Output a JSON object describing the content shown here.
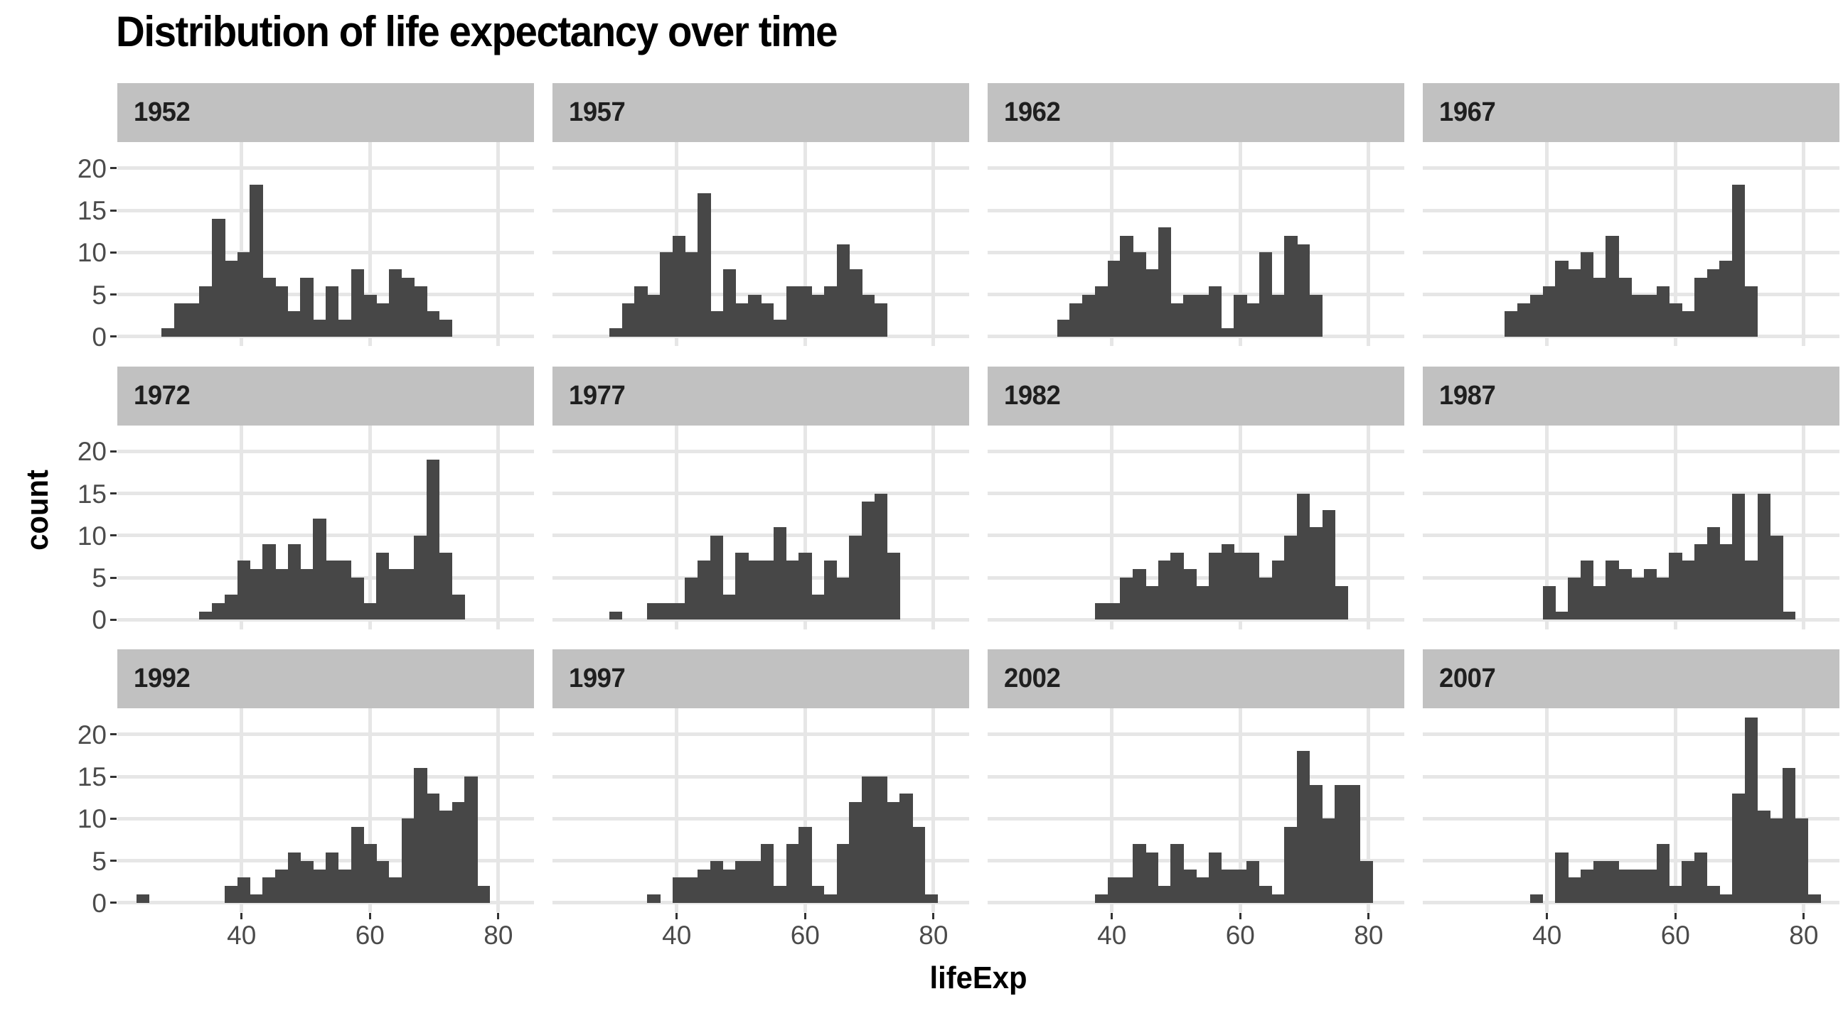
{
  "title": "Distribution of life expectancy over time",
  "x_axis": {
    "label": "lifeExp",
    "tick_labels": [
      "40",
      "60",
      "80"
    ],
    "tick_values": [
      40,
      60,
      80
    ]
  },
  "y_axis": {
    "label": "count",
    "tick_labels": [
      "0",
      "5",
      "10",
      "15",
      "20"
    ],
    "tick_values": [
      0,
      5,
      10,
      15,
      20
    ]
  },
  "colors": {
    "bar": "#474747",
    "strip_background": "#c1c1c1",
    "strip_text": "#1f1f1f",
    "gridline": "#e6e6e6",
    "axis_tick_text": "#4b4b4b",
    "tick_mark": "#333333",
    "title_text": "#000000",
    "panel_background": "#ffffff"
  },
  "chart_data": {
    "type": "bar",
    "subtype": "faceted-histogram",
    "title": "Distribution of life expectancy over time",
    "xlabel": "lifeExp",
    "ylabel": "count",
    "legend": "none",
    "grid": "major-only",
    "facet_layout": {
      "rows": 3,
      "cols": 4
    },
    "x_domain": [
      20.65,
      85.55
    ],
    "y_domain": [
      -1.1,
      23.1
    ],
    "x_ticks": [
      40,
      60,
      80
    ],
    "y_ticks": [
      0,
      5,
      10,
      15,
      20
    ],
    "bin_start": 23.6,
    "bin_width": 1.9667,
    "n_bins": 30,
    "total_per_facet": 142,
    "facets": [
      {
        "year": "1952",
        "counts": [
          0,
          0,
          1,
          4,
          4,
          6,
          14,
          9,
          10,
          18,
          7,
          6,
          3,
          7,
          2,
          6,
          2,
          8,
          5,
          4,
          8,
          7,
          6,
          3,
          2,
          0,
          0,
          0,
          0,
          0
        ]
      },
      {
        "year": "1957",
        "counts": [
          0,
          0,
          0,
          1,
          4,
          6,
          5,
          10,
          12,
          10,
          17,
          3,
          8,
          4,
          5,
          4,
          2,
          6,
          6,
          5,
          6,
          11,
          8,
          5,
          4,
          0,
          0,
          0,
          0,
          0
        ]
      },
      {
        "year": "1962",
        "counts": [
          0,
          0,
          0,
          0,
          2,
          4,
          5,
          6,
          9,
          12,
          10,
          8,
          13,
          4,
          5,
          5,
          6,
          1,
          5,
          4,
          10,
          5,
          12,
          11,
          5,
          0,
          0,
          0,
          0,
          0
        ]
      },
      {
        "year": "1967",
        "counts": [
          0,
          0,
          0,
          0,
          0,
          3,
          4,
          5,
          6,
          9,
          8,
          10,
          7,
          12,
          7,
          5,
          5,
          6,
          4,
          3,
          7,
          8,
          9,
          18,
          6,
          0,
          0,
          0,
          0,
          0
        ]
      },
      {
        "year": "1972",
        "counts": [
          0,
          0,
          0,
          0,
          0,
          1,
          2,
          3,
          7,
          6,
          9,
          6,
          9,
          6,
          12,
          7,
          7,
          5,
          2,
          8,
          6,
          6,
          10,
          19,
          8,
          3,
          0,
          0,
          0,
          0
        ]
      },
      {
        "year": "1977",
        "counts": [
          0,
          0,
          0,
          1,
          0,
          0,
          2,
          2,
          2,
          5,
          7,
          10,
          3,
          8,
          7,
          7,
          11,
          7,
          8,
          3,
          7,
          5,
          10,
          14,
          15,
          8,
          0,
          0,
          0,
          0
        ]
      },
      {
        "year": "1982",
        "counts": [
          0,
          0,
          0,
          0,
          0,
          0,
          0,
          2,
          2,
          5,
          6,
          4,
          7,
          8,
          6,
          4,
          8,
          9,
          8,
          8,
          5,
          7,
          10,
          15,
          11,
          13,
          4,
          0,
          0,
          0
        ]
      },
      {
        "year": "1987",
        "counts": [
          0,
          0,
          0,
          0,
          0,
          0,
          0,
          0,
          4,
          1,
          5,
          7,
          4,
          7,
          6,
          5,
          6,
          5,
          8,
          7,
          9,
          11,
          9,
          15,
          7,
          15,
          10,
          1,
          0,
          0
        ]
      },
      {
        "year": "1992",
        "counts": [
          1,
          0,
          0,
          0,
          0,
          0,
          0,
          2,
          3,
          1,
          3,
          4,
          6,
          5,
          4,
          6,
          4,
          9,
          7,
          5,
          3,
          10,
          16,
          13,
          11,
          12,
          15,
          2,
          0,
          0
        ]
      },
      {
        "year": "1997",
        "counts": [
          0,
          0,
          0,
          0,
          0,
          0,
          1,
          0,
          3,
          3,
          4,
          5,
          4,
          5,
          5,
          7,
          2,
          7,
          9,
          2,
          1,
          7,
          12,
          15,
          15,
          12,
          13,
          9,
          1,
          0
        ]
      },
      {
        "year": "2002",
        "counts": [
          0,
          0,
          0,
          0,
          0,
          0,
          0,
          1,
          3,
          3,
          7,
          6,
          2,
          7,
          4,
          3,
          6,
          4,
          4,
          5,
          2,
          1,
          9,
          18,
          14,
          10,
          14,
          14,
          5,
          0
        ]
      },
      {
        "year": "2007",
        "counts": [
          0,
          0,
          0,
          0,
          0,
          0,
          0,
          1,
          0,
          6,
          3,
          4,
          5,
          5,
          4,
          4,
          4,
          7,
          2,
          5,
          6,
          2,
          1,
          13,
          22,
          11,
          10,
          16,
          10,
          1
        ]
      }
    ]
  }
}
